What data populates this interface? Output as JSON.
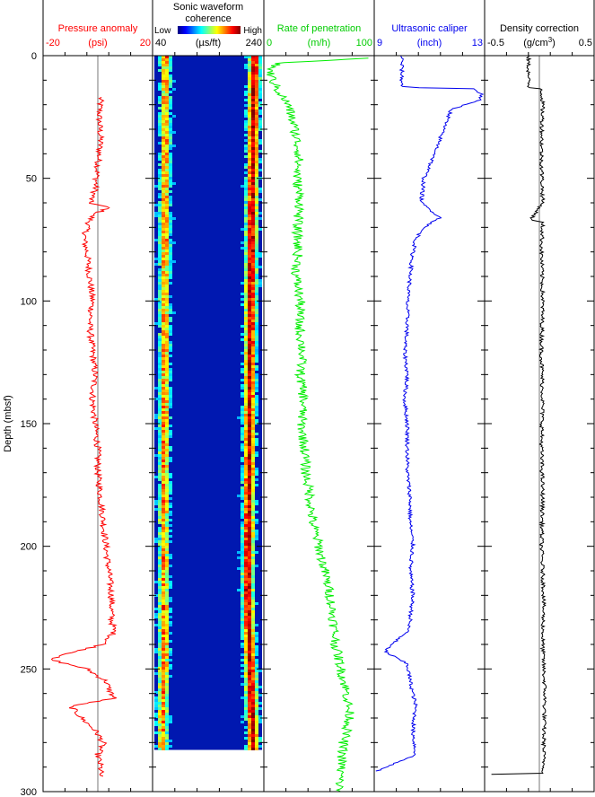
{
  "figure": {
    "y_axis": {
      "label": "Depth (mbsf)",
      "min": 0,
      "max": 300,
      "ticks": [
        0,
        50,
        100,
        150,
        200,
        250,
        300
      ]
    }
  },
  "chart_data": [
    {
      "type": "line",
      "title": "Pressure anomaly",
      "unit": "(psi)",
      "xlim": [
        -20,
        20
      ],
      "tick_labels": [
        "-20",
        "20"
      ],
      "color": "#ff0000",
      "reference_line": 0,
      "series": [
        {
          "y": [
            17,
            25,
            35,
            45,
            55,
            60,
            62,
            65,
            70,
            75,
            80,
            90,
            100,
            110,
            120,
            130,
            140,
            150,
            160,
            170,
            180,
            190,
            200,
            210,
            220,
            230,
            235,
            240,
            243,
            246,
            250,
            255,
            258,
            262,
            265,
            270,
            275,
            280,
            285,
            290,
            294
          ],
          "x": [
            1,
            0.5,
            1,
            0,
            -1,
            -3,
            4,
            -2,
            -4,
            -5,
            -4,
            -3,
            -2,
            -3,
            -2,
            -1,
            -2,
            -1,
            0,
            0,
            1,
            2,
            3,
            4,
            5,
            5,
            6,
            2,
            -8,
            -18,
            -4,
            3,
            4,
            6,
            -10,
            -6,
            -1,
            2,
            0,
            1,
            1
          ]
        }
      ]
    },
    {
      "type": "heatmap",
      "title": "Sonic waveform coherence",
      "unit": "(µs/ft)",
      "xlim": [
        40,
        240
      ],
      "tick_labels": [
        "40",
        "240"
      ],
      "colorbar_labels": [
        "Low",
        "High"
      ],
      "depth_range": [
        0,
        283
      ],
      "bands": [
        {
          "name": "compressional",
          "x_from": [
            60,
            57,
            58,
            54
          ],
          "y_from": [
            0,
            220,
            240,
            283
          ]
        },
        {
          "name": "shear",
          "x_from": [
            220,
            214,
            208,
            218
          ],
          "y_from": [
            0,
            80,
            220,
            283
          ]
        }
      ]
    },
    {
      "type": "line",
      "title": "Rate of penetration",
      "unit": "(m/h)",
      "xlim": [
        0,
        100
      ],
      "tick_labels": [
        "0",
        "100"
      ],
      "color": "#00ee00",
      "series": [
        {
          "y": [
            1,
            3,
            6,
            10,
            15,
            20,
            30,
            40,
            50,
            60,
            70,
            80,
            90,
            100,
            110,
            120,
            130,
            140,
            150,
            160,
            170,
            180,
            190,
            200,
            210,
            220,
            230,
            240,
            250,
            260,
            270,
            280,
            290,
            300
          ],
          "x": [
            98,
            12,
            5,
            8,
            14,
            22,
            28,
            32,
            30,
            33,
            30,
            31,
            29,
            33,
            32,
            35,
            33,
            36,
            34,
            37,
            38,
            42,
            44,
            50,
            55,
            60,
            63,
            65,
            70,
            75,
            78,
            72,
            70,
            68
          ]
        }
      ]
    },
    {
      "type": "line",
      "title": "Ultrasonic caliper",
      "unit": "(inch)",
      "xlim": [
        9,
        13
      ],
      "tick_labels": [
        "9",
        "13"
      ],
      "color": "#0000ee",
      "series": [
        {
          "y": [
            0,
            13,
            13.2,
            16,
            18,
            22,
            30,
            40,
            50,
            60,
            66,
            70,
            75,
            80,
            90,
            100,
            110,
            120,
            130,
            140,
            150,
            160,
            170,
            180,
            190,
            200,
            210,
            220,
            230,
            235,
            240,
            243,
            248,
            255,
            265,
            275,
            285,
            292
          ],
          "x": [
            10,
            10,
            12.6,
            12.9,
            12.8,
            11.8,
            11.5,
            11.2,
            10.8,
            10.7,
            11.4,
            10.8,
            10.5,
            10.4,
            10.3,
            10.2,
            10.2,
            10.1,
            10.2,
            10.1,
            10.2,
            10.2,
            10.2,
            10.3,
            10.3,
            10.4,
            10.3,
            10.4,
            10.3,
            10.2,
            9.6,
            9.4,
            10.2,
            10.3,
            10.5,
            10.4,
            10.5,
            9
          ]
        }
      ]
    },
    {
      "type": "line",
      "title": "Density correction",
      "unit": "(g/cm",
      "unit_sup": "3",
      "unit_end": ")",
      "xlim": [
        -0.5,
        0.5
      ],
      "tick_labels": [
        "-0.5",
        "0.5"
      ],
      "color": "#000000",
      "reference_line": 0,
      "series": [
        {
          "y": [
            0,
            13,
            13.5,
            20,
            40,
            60,
            67,
            68,
            80,
            100,
            120,
            140,
            160,
            180,
            200,
            220,
            240,
            260,
            280,
            292.5,
            293
          ],
          "x": [
            -0.1,
            -0.1,
            0.02,
            0.03,
            0.02,
            0.03,
            -0.08,
            0.03,
            0.02,
            0.03,
            0.02,
            0.03,
            0.02,
            0.03,
            0.02,
            0.04,
            0.03,
            0.05,
            0.04,
            0.04,
            -0.5
          ]
        }
      ]
    }
  ]
}
